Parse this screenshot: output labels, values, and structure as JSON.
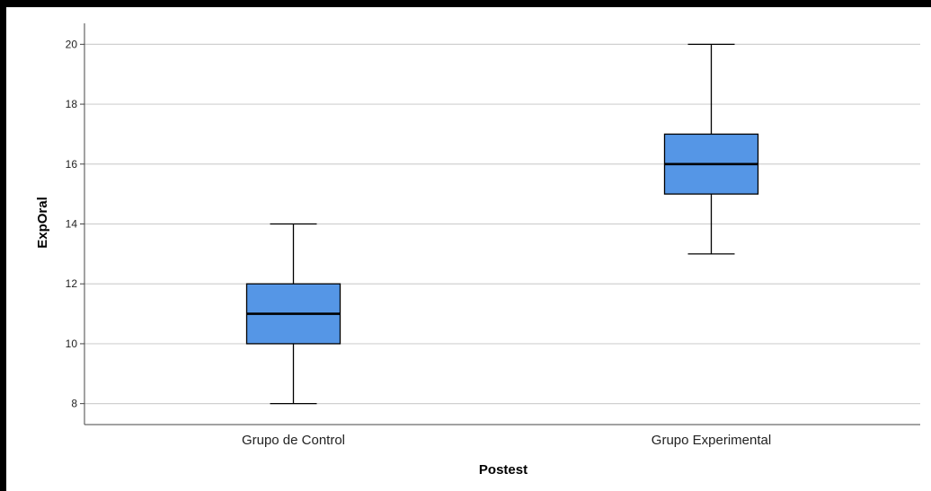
{
  "chart_data": {
    "type": "boxplot",
    "xlabel": "Postest",
    "ylabel": "ExpOral",
    "ylim": [
      7.3,
      20.7
    ],
    "yticks": [
      8,
      10,
      12,
      14,
      16,
      18,
      20
    ],
    "grid": true,
    "box_color": "#5596e6",
    "categories": [
      "Grupo de Control",
      "Grupo Experimental"
    ],
    "boxes": [
      {
        "category": "Grupo de Control",
        "min": 8,
        "q1": 10,
        "median": 11,
        "q3": 12,
        "max": 14
      },
      {
        "category": "Grupo Experimental",
        "min": 13,
        "q1": 15,
        "median": 16,
        "q3": 17,
        "max": 20
      }
    ]
  }
}
